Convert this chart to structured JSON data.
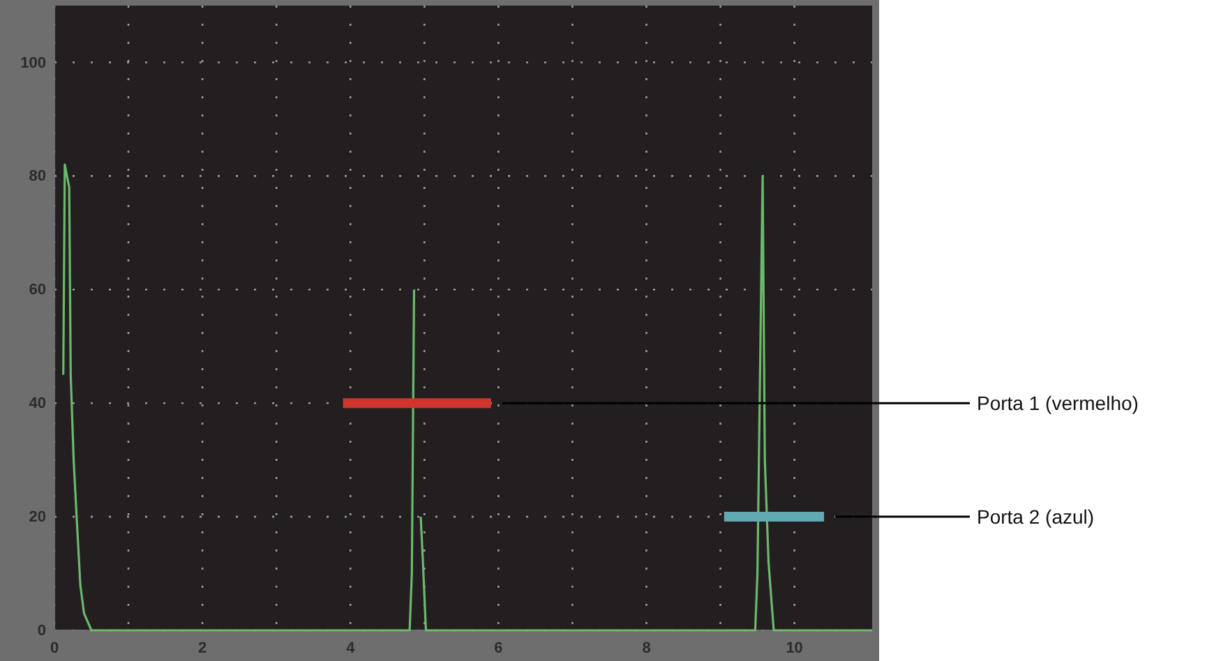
{
  "chart_data": {
    "type": "line",
    "xlim": [
      0,
      11.05
    ],
    "ylim": [
      0,
      110
    ],
    "xticks": [
      0,
      {
        "value": 1,
        "label": null
      },
      2,
      {
        "value": 3,
        "label": null
      },
      4,
      {
        "value": 5,
        "label": null
      },
      6,
      {
        "value": 7,
        "label": null
      },
      8,
      {
        "value": 9,
        "label": null
      },
      10
    ],
    "yticks": [
      0,
      20,
      40,
      60,
      80,
      100
    ],
    "grid": true,
    "legend": false,
    "marker": "none",
    "series": [
      {
        "color": "#6cb86c",
        "x": [
          0.12,
          0.14,
          0.2,
          0.22,
          0.26,
          0.3,
          0.35,
          0.4,
          0.5,
          4.8,
          4.83,
          4.86
        ],
        "values": [
          45,
          82,
          78,
          45,
          30,
          20,
          8,
          3,
          0,
          0,
          10,
          60
        ]
      },
      {
        "color": "#6cb86c",
        "x": [
          4.95,
          4.98,
          5.02,
          9.47,
          9.5,
          9.55,
          9.57,
          9.6,
          9.65,
          9.72,
          11.05
        ],
        "values": [
          20,
          12,
          0,
          0,
          10,
          60,
          80,
          30,
          12,
          0,
          0
        ]
      },
      {
        "name": "Porta 1 (vermelho)",
        "color": "#d2352e",
        "x": [
          3.9,
          5.9
        ],
        "values": [
          40,
          40
        ]
      },
      {
        "name": "Porta 2 (azul)",
        "color": "#62aab3",
        "x": [
          9.05,
          10.4
        ],
        "values": [
          20,
          20
        ]
      }
    ]
  }
}
